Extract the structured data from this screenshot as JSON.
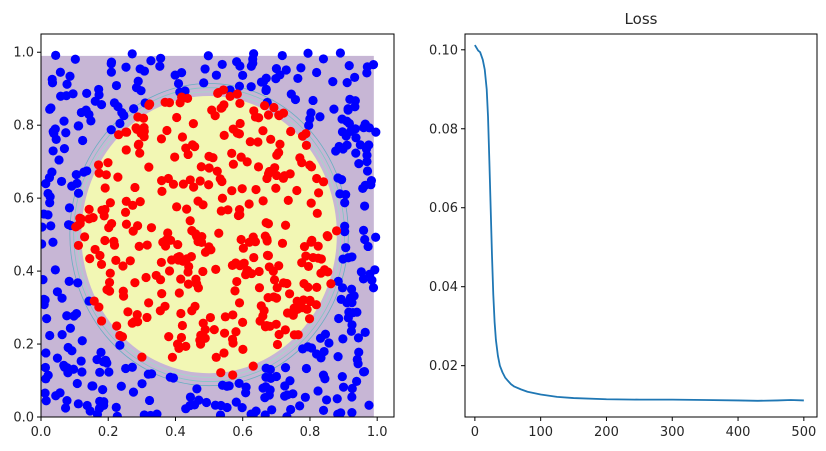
{
  "chart_data": [
    {
      "type": "scatter",
      "title": "",
      "xlabel": "",
      "ylabel": "",
      "xlim": [
        0,
        1.05
      ],
      "ylim": [
        0,
        1.05
      ],
      "xticks": [
        "0.0",
        "0.2",
        "0.4",
        "0.6",
        "0.8",
        "1.0"
      ],
      "yticks": [
        "0.0",
        "0.2",
        "0.4",
        "0.6",
        "0.8",
        "1.0"
      ],
      "background_region": {
        "x": [
          0,
          0.99
        ],
        "y": [
          0,
          0.99
        ],
        "color": "#c7b6d5"
      },
      "decision_region": {
        "center": [
          0.5,
          0.5
        ],
        "radius": 0.38,
        "color": "#f2f7b4",
        "contour_colors": [
          "#9fdcc7",
          "#7fc8c2",
          "#67afc0"
        ]
      },
      "points_per_class": 350,
      "series": [
        {
          "color": "#0000ff",
          "rule": "distance from (0.5, 0.5) greater than 0.4"
        },
        {
          "color": "#ff0000",
          "rule": "distance from (0.5, 0.5) at most 0.4"
        }
      ],
      "grid": false
    },
    {
      "type": "line",
      "title": "Loss",
      "xlabel": "",
      "ylabel": "",
      "xlim": [
        -15,
        520
      ],
      "ylim": [
        0.007,
        0.104
      ],
      "xticks": [
        "0",
        "100",
        "200",
        "300",
        "400",
        "500"
      ],
      "yticks": [
        "0.02",
        "0.04",
        "0.06",
        "0.08",
        "0.10"
      ],
      "series": [
        {
          "color": "#1f77b4",
          "x": [
            0,
            5,
            8,
            12,
            15,
            18,
            20,
            22,
            24,
            26,
            28,
            30,
            32,
            35,
            38,
            42,
            46,
            50,
            55,
            60,
            70,
            80,
            100,
            125,
            150,
            200,
            250,
            300,
            350,
            400,
            430,
            460,
            480,
            500
          ],
          "y": [
            0.1012,
            0.0998,
            0.0994,
            0.0975,
            0.095,
            0.09,
            0.083,
            0.072,
            0.06,
            0.048,
            0.038,
            0.031,
            0.0265,
            0.0225,
            0.02,
            0.0183,
            0.017,
            0.0162,
            0.0153,
            0.0147,
            0.014,
            0.0134,
            0.0127,
            0.0121,
            0.0118,
            0.0115,
            0.0114,
            0.0114,
            0.0113,
            0.0112,
            0.0111,
            0.0112,
            0.0113,
            0.0112
          ]
        }
      ],
      "grid": false
    }
  ]
}
